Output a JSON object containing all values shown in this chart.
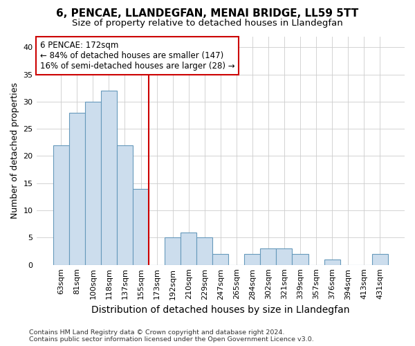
{
  "title": "6, PENCAE, LLANDEGFAN, MENAI BRIDGE, LL59 5TT",
  "subtitle": "Size of property relative to detached houses in Llandegfan",
  "xlabel": "Distribution of detached houses by size in Llandegfan",
  "ylabel": "Number of detached properties",
  "categories": [
    "63sqm",
    "81sqm",
    "100sqm",
    "118sqm",
    "137sqm",
    "155sqm",
    "173sqm",
    "192sqm",
    "210sqm",
    "229sqm",
    "247sqm",
    "265sqm",
    "284sqm",
    "302sqm",
    "321sqm",
    "339sqm",
    "357sqm",
    "376sqm",
    "394sqm",
    "413sqm",
    "431sqm"
  ],
  "values": [
    22,
    28,
    30,
    32,
    22,
    14,
    0,
    5,
    6,
    5,
    2,
    0,
    2,
    3,
    3,
    2,
    0,
    1,
    0,
    0,
    2
  ],
  "bar_color": "#ccdded",
  "bar_edge_color": "#6699bb",
  "vline_x_index": 6,
  "vline_color": "#cc0000",
  "annotation_title": "6 PENCAE: 172sqm",
  "annotation_line1": "← 84% of detached houses are smaller (147)",
  "annotation_line2": "16% of semi-detached houses are larger (28) →",
  "annotation_box_color": "#ffffff",
  "annotation_box_edge": "#cc0000",
  "ylim": [
    0,
    42
  ],
  "yticks": [
    0,
    5,
    10,
    15,
    20,
    25,
    30,
    35,
    40
  ],
  "footer_line1": "Contains HM Land Registry data © Crown copyright and database right 2024.",
  "footer_line2": "Contains public sector information licensed under the Open Government Licence v3.0.",
  "background_color": "#ffffff",
  "grid_color": "#cccccc",
  "title_fontsize": 11,
  "subtitle_fontsize": 9.5,
  "xlabel_fontsize": 10,
  "ylabel_fontsize": 9,
  "tick_fontsize": 8,
  "annotation_fontsize": 8.5,
  "footer_fontsize": 6.8
}
